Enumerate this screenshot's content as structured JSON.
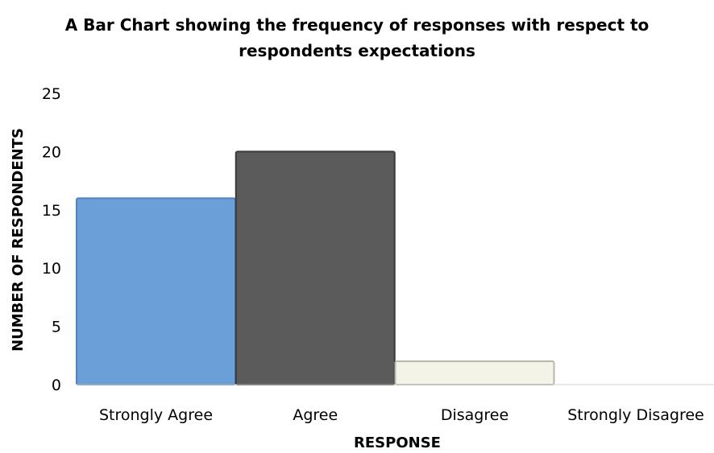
{
  "chart_data": {
    "type": "bar",
    "title_lines": [
      "A Bar Chart showing the frequency of responses with respect to",
      "respondents expectations"
    ],
    "xlabel": "RESPONSE",
    "ylabel": "NUMBER OF RESPONDENTS",
    "categories": [
      "Strongly Agree",
      "Agree",
      "Disagree",
      "Strongly Disagree"
    ],
    "values": [
      16,
      20,
      2,
      0
    ],
    "ylim": [
      0,
      25
    ],
    "yticks": [
      0,
      5,
      10,
      15,
      20,
      25
    ],
    "grid": false,
    "legend": "none",
    "bar_colors": [
      "#6a9fd8",
      "#5b5b5b",
      "#f3f3e8",
      "#d9d9d9"
    ],
    "bar_edge_colors": [
      "#4f83bd",
      "#3a3a3a",
      "#b8b8a8",
      "#999999"
    ]
  }
}
